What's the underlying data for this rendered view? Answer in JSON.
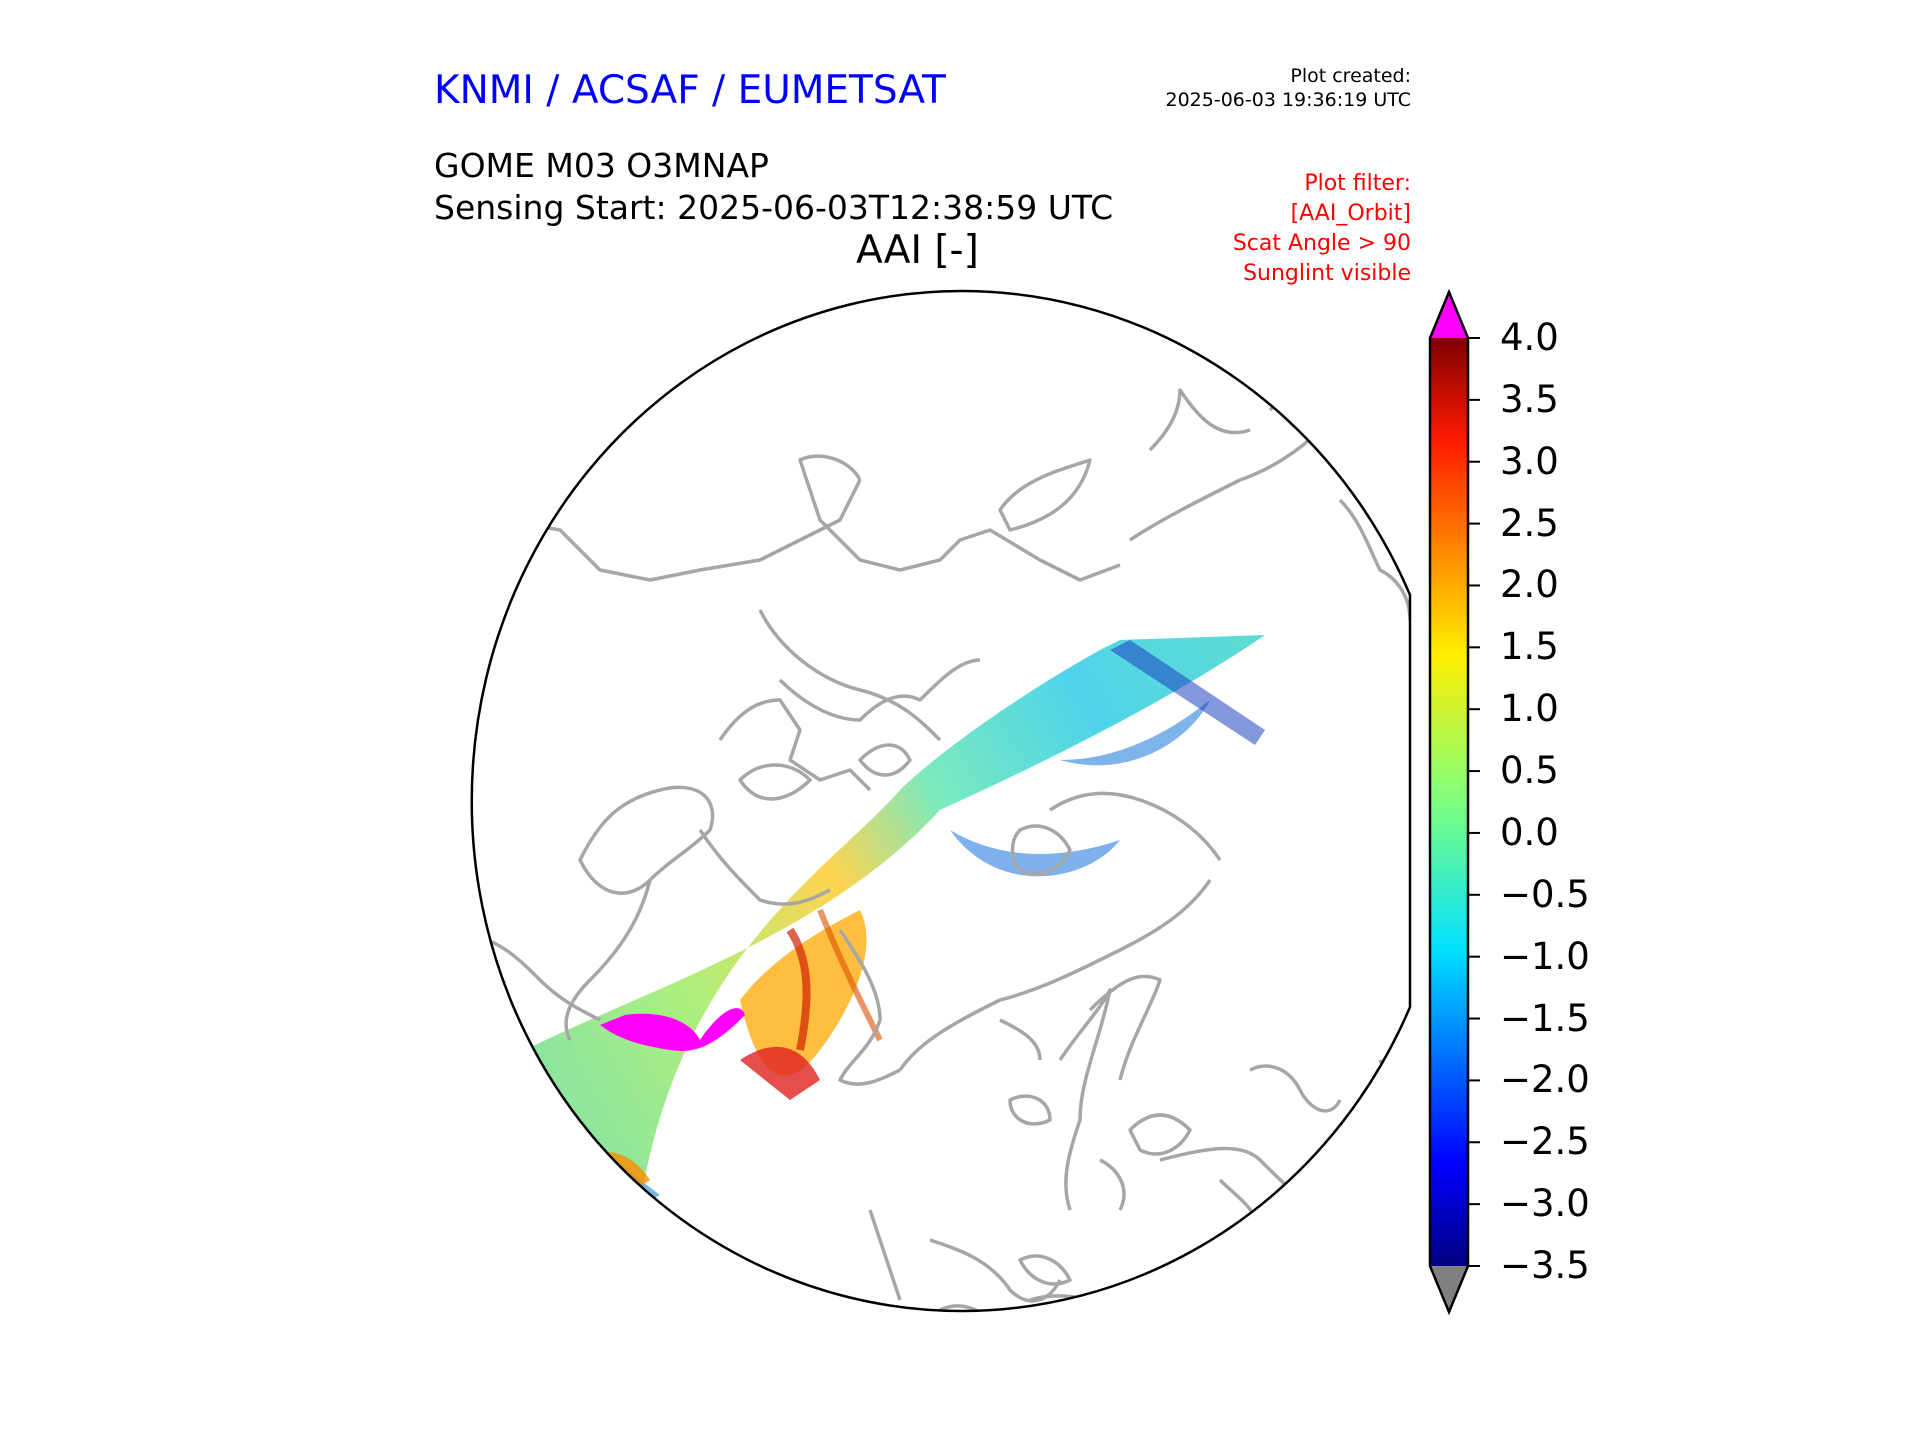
{
  "header": {
    "org": "KNMI / ACSAF / EUMETSAT",
    "plot_created_label": "Plot created:",
    "plot_created_time": "2025-06-03 19:36:19 UTC",
    "product": "GOME M03 O3MNAP",
    "sensing_start": "Sensing Start: 2025-06-03T12:38:59 UTC",
    "variable": "AAI [-]"
  },
  "filter": {
    "lines": [
      "Plot filter:",
      "[AAI_Orbit]",
      "Scat Angle > 90",
      "Sunglint visible"
    ]
  },
  "colorbar": {
    "min": -3.5,
    "max": 4.0,
    "ticks": [
      "4.0",
      "3.5",
      "3.0",
      "2.5",
      "2.0",
      "1.5",
      "1.0",
      "0.5",
      "0.0",
      "−0.5",
      "−1.0",
      "−1.5",
      "−2.0",
      "−2.5",
      "−3.0",
      "−3.5"
    ],
    "over_color": "#ff00ff",
    "under_color": "#808080",
    "colormap": "jet"
  },
  "map": {
    "projection": "north-polar-stereographic",
    "coastline_color": "#a6a6a6",
    "swath": "GOME orbit swath of AAI values from the North Pacific across Alaska, Canada and the Arctic toward Siberia; high values (>4, magenta) over western Canada"
  }
}
